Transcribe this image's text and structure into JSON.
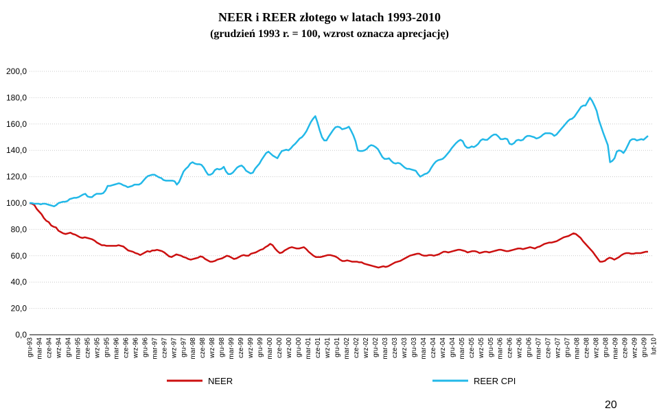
{
  "page_number": "20",
  "chart_data": {
    "type": "line",
    "title": "NEER i REER złotego w latach 1993-2010",
    "subtitle": "(grudzień 1993 r. = 100, wzrost oznacza aprecjację)",
    "ylim": [
      0,
      200
    ],
    "yticks": [
      "200,0",
      "180,0",
      "160,0",
      "140,0",
      "120,0",
      "100,0",
      "80,0",
      "60,0",
      "40,0",
      "20,0",
      "0,0"
    ],
    "x_labels": [
      "gru-93",
      "mar-94",
      "cze-94",
      "wrz-94",
      "gru-94",
      "mar-95",
      "cze-95",
      "wrz-95",
      "gru-95",
      "mar-96",
      "cze-96",
      "wrz-96",
      "gru-96",
      "mar-97",
      "cze-97",
      "wrz-97",
      "gru-97",
      "mar-98",
      "cze-98",
      "wrz-98",
      "gru-98",
      "mar-99",
      "cze-99",
      "wrz-99",
      "gru-99",
      "mar-00",
      "cze-00",
      "wrz-00",
      "gru-00",
      "mar-01",
      "cze-01",
      "wrz-01",
      "gru-01",
      "mar-02",
      "cze-02",
      "wrz-02",
      "gru-02",
      "mar-03",
      "cze-03",
      "wrz-03",
      "gru-03",
      "mar-04",
      "cze-04",
      "wrz-04",
      "gru-04",
      "mar-05",
      "cze-05",
      "wrz-05",
      "gru-05",
      "mar-06",
      "cze-06",
      "wrz-06",
      "gru-06",
      "mar-07",
      "cze-07",
      "wrz-07",
      "gru-07",
      "mar-08",
      "cze-08",
      "wrz-08",
      "gru-08",
      "mar-09",
      "cze-09",
      "wrz-09",
      "gru-09",
      "lut-10"
    ],
    "grid": true,
    "legend_position": "bottom",
    "series": [
      {
        "name": "NEER",
        "color": "#cc1010",
        "values": [
          100,
          99.5,
          98.5,
          95.5,
          93.5,
          91.5,
          88.5,
          86.5,
          85.5,
          83,
          82,
          81.5,
          79,
          78,
          77,
          76.5,
          77,
          77.5,
          76.5,
          76,
          75,
          74,
          73.5,
          74,
          73.5,
          73,
          72.5,
          71.5,
          70,
          69,
          68,
          68,
          67.5,
          67.5,
          67.5,
          67.5,
          67.5,
          68,
          67.5,
          67,
          65.5,
          64,
          63.5,
          63,
          62,
          61.5,
          60.5,
          61.5,
          62.5,
          63.5,
          63,
          64,
          64,
          64.5,
          64,
          63.5,
          62.5,
          61,
          59.5,
          59,
          60,
          61,
          60.5,
          60,
          59,
          58.5,
          57.5,
          57,
          57.5,
          58,
          58.5,
          59.5,
          59,
          57.5,
          56.5,
          55.5,
          55.5,
          56,
          57,
          57.5,
          58,
          59,
          60,
          59.5,
          58.5,
          57.5,
          58,
          59,
          60,
          60.5,
          60,
          60,
          61.5,
          62,
          62.5,
          63.5,
          64.5,
          65,
          66.5,
          67.5,
          69,
          68,
          65.5,
          63.5,
          62,
          62.5,
          64,
          65,
          66,
          66.5,
          66,
          65.5,
          65.5,
          66,
          66.5,
          65,
          63,
          61.5,
          60,
          59,
          59,
          59,
          59.5,
          60,
          60.5,
          60.5,
          60,
          59.5,
          58.5,
          57,
          56,
          56,
          56.5,
          56,
          55.5,
          55.5,
          55.5,
          55,
          55,
          54,
          53.5,
          53,
          52.5,
          52,
          51.5,
          51,
          51.5,
          52,
          51.5,
          52,
          53,
          54,
          55,
          55.5,
          56,
          57,
          58,
          59,
          60,
          60.5,
          61,
          61.5,
          61.5,
          60.5,
          60,
          60,
          60.5,
          60.5,
          60,
          60.5,
          61,
          62,
          63,
          63,
          62.5,
          63,
          63.5,
          64,
          64.5,
          64.5,
          64,
          63.5,
          62.5,
          63,
          63.5,
          63.5,
          63,
          62,
          62.5,
          63,
          63,
          62.5,
          63,
          63.5,
          64,
          64.5,
          64.5,
          64,
          63.5,
          63.5,
          64,
          64.5,
          65,
          65.5,
          65.5,
          65,
          65.5,
          66,
          66.5,
          66,
          65.5,
          66.5,
          67,
          68,
          69,
          69.5,
          70,
          70,
          70.5,
          71,
          72,
          73,
          74,
          74.5,
          75,
          76,
          77,
          76.5,
          75,
          73.5,
          71,
          69,
          67,
          65,
          63,
          60.5,
          58,
          55.5,
          55.5,
          56,
          57.5,
          58.5,
          58,
          57,
          58,
          59,
          60.5,
          61.5,
          62,
          62,
          61.5,
          61.5,
          62,
          62,
          62,
          62.5,
          63,
          63
        ],
        "values_note": ""
      },
      {
        "name": "REER CPI",
        "color": "#22b8e8",
        "values": [
          100,
          100,
          99.5,
          99.5,
          99.5,
          99,
          99.5,
          99.5,
          99,
          98.5,
          98,
          97.5,
          98.5,
          100,
          100.5,
          101,
          101,
          101.5,
          103,
          103.5,
          104,
          104,
          104.5,
          105.5,
          106.5,
          107,
          105,
          104.5,
          104.5,
          106,
          107,
          107,
          107,
          107.5,
          109.5,
          113,
          113,
          113.5,
          114,
          114.5,
          115,
          114.5,
          113.5,
          113,
          112,
          112.5,
          113,
          114,
          114,
          114,
          115,
          117,
          119,
          120.5,
          121,
          121.5,
          121.5,
          120.5,
          119.5,
          119,
          117.5,
          117,
          117,
          117,
          117,
          116.5,
          114,
          116,
          120,
          124,
          126,
          127.5,
          130,
          131,
          130,
          129.5,
          129.5,
          129,
          127,
          124,
          121.5,
          121.5,
          122.5,
          125,
          126,
          125.5,
          126,
          127.5,
          124,
          122,
          122,
          123,
          125,
          127,
          128,
          128.5,
          127,
          124.5,
          123.5,
          122.5,
          123,
          126,
          128,
          130,
          133,
          135.5,
          138,
          139,
          137.5,
          136,
          135,
          134,
          137,
          139.5,
          140,
          140.5,
          140,
          141.5,
          143.5,
          145,
          147,
          149,
          150,
          152,
          154.5,
          158,
          161.5,
          164,
          166,
          161,
          155,
          150,
          147.5,
          147.5,
          150.5,
          153,
          155.5,
          157.5,
          158,
          157.5,
          156,
          156.5,
          157,
          158,
          155,
          151.5,
          147,
          140,
          139.5,
          139.5,
          140,
          141,
          143,
          144,
          143.5,
          142.5,
          141,
          138,
          135,
          133.5,
          133.5,
          134,
          132,
          130.5,
          130,
          130.5,
          130,
          128.5,
          127,
          126,
          126,
          125.5,
          125,
          124.5,
          122,
          120,
          121,
          122,
          122.5,
          124,
          127,
          129.5,
          131.5,
          132.5,
          133,
          133.5,
          135,
          137,
          139,
          141.5,
          143.5,
          145.5,
          147,
          148,
          147,
          143.5,
          142,
          142,
          143,
          142.5,
          143.5,
          145,
          147.5,
          148.5,
          148,
          148,
          149.5,
          151,
          152,
          152,
          150.5,
          148.5,
          148.5,
          149,
          148.5,
          145,
          144.5,
          145.5,
          147.5,
          148,
          147.5,
          148,
          150,
          151,
          151,
          150.5,
          150,
          149,
          149.5,
          150.5,
          152,
          153,
          153,
          153,
          152.5,
          151,
          152,
          154,
          156,
          158,
          160,
          162,
          163.5,
          164,
          165.5,
          168,
          170.5,
          173,
          174,
          174,
          177,
          180,
          177.5,
          174,
          170,
          163,
          158,
          153,
          148.5,
          144,
          131,
          132,
          134,
          139,
          140,
          139.5,
          138,
          140.5,
          144,
          147.5,
          148.5,
          148.5,
          147.5,
          148,
          148.5,
          148,
          149.5,
          151
        ]
      }
    ]
  }
}
